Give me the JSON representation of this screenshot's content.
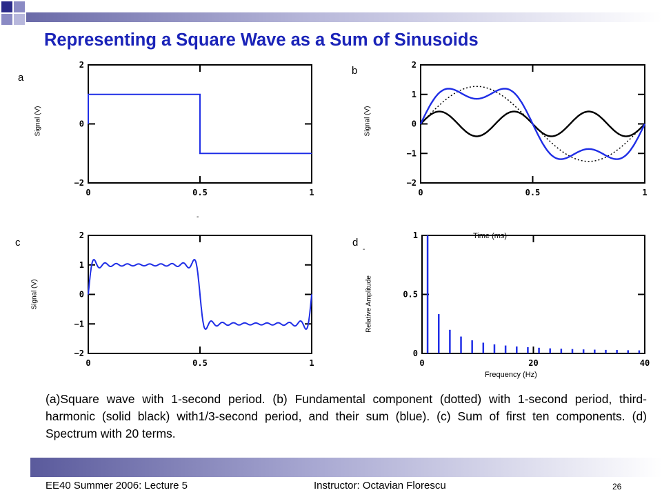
{
  "slide": {
    "title": "Representing a Square Wave as a Sum of  Sinusoids",
    "caption": "(a)Square wave with 1-second period.  (b)  Fundamental component (dotted) with 1-second period, third-harmonic (solid black) with1/3-second period, and their sum (blue).  (c)  Sum of first ten components.  (d) Spectrum with 20 terms.",
    "footer_left": "EE40 Summer 2006: Lecture 5",
    "footer_right": "Instructor: Octavian Florescu",
    "page_number": "26",
    "colors": {
      "title": "#1a23b8",
      "blue_trace": "#1f2ee6",
      "black_trace": "#000000",
      "accent": "#6a6aa8"
    }
  },
  "chart_data": [
    {
      "panel": "a",
      "type": "line",
      "title": "",
      "xlabel": "",
      "ylabel": "Signal (V)",
      "xlim": [
        0,
        1
      ],
      "ylim": [
        -2,
        2
      ],
      "xticks": [
        "0",
        "0.5",
        "1"
      ],
      "yticks": [
        "2",
        "0",
        "−2"
      ],
      "series": [
        {
          "color": "#1f2ee6",
          "style": "solid",
          "x": [
            0,
            0,
            0.5,
            0.5,
            1
          ],
          "y": [
            0,
            1,
            1,
            -1,
            -1
          ]
        }
      ]
    },
    {
      "panel": "b",
      "type": "line",
      "title": "",
      "xlabel": "",
      "ylabel": "Signal (V)",
      "xlim": [
        0,
        1
      ],
      "ylim": [
        -2,
        2
      ],
      "xticks": [
        "0",
        "0.5",
        "1"
      ],
      "yticks": [
        "2",
        "1",
        "0",
        "−1",
        "−2"
      ],
      "series": [
        {
          "color": "#000000",
          "style": "dotted",
          "function": "1.27*sin(2*pi*x)"
        },
        {
          "color": "#000000",
          "style": "solid",
          "function": "0.42*sin(6*pi*x)"
        },
        {
          "color": "#1f2ee6",
          "style": "solid",
          "function": "1.27*sin(2*pi*x)+0.42*sin(6*pi*x)"
        }
      ]
    },
    {
      "panel": "c",
      "type": "line",
      "title": "",
      "xlabel": "",
      "ylabel": "Signal (V)",
      "xlim": [
        0,
        1
      ],
      "ylim": [
        -2,
        2
      ],
      "xticks": [
        "0",
        "0.5",
        "1"
      ],
      "yticks": [
        "2",
        "1",
        "0",
        "−1",
        "−2"
      ],
      "series": [
        {
          "color": "#1f2ee6",
          "style": "solid",
          "function": "sum of first ten odd-harmonic sine terms of a 1 V square wave"
        }
      ]
    },
    {
      "panel": "d",
      "type": "bar",
      "title": "Time (ms)",
      "xlabel": "Frequency (Hz)",
      "ylabel": "Relative Amplitude",
      "xlim": [
        0,
        40
      ],
      "ylim": [
        0,
        1
      ],
      "xticks": [
        "0",
        "20",
        "40"
      ],
      "yticks": [
        "1",
        "0.5",
        "0"
      ],
      "x": [
        1,
        3,
        5,
        7,
        9,
        11,
        13,
        15,
        17,
        19,
        21,
        23,
        25,
        27,
        29,
        31,
        33,
        35,
        37,
        39
      ],
      "values": [
        1,
        0.333,
        0.2,
        0.143,
        0.111,
        0.091,
        0.077,
        0.067,
        0.059,
        0.053,
        0.048,
        0.043,
        0.04,
        0.037,
        0.034,
        0.032,
        0.03,
        0.029,
        0.027,
        0.026
      ],
      "color": "#1f2ee6"
    }
  ]
}
